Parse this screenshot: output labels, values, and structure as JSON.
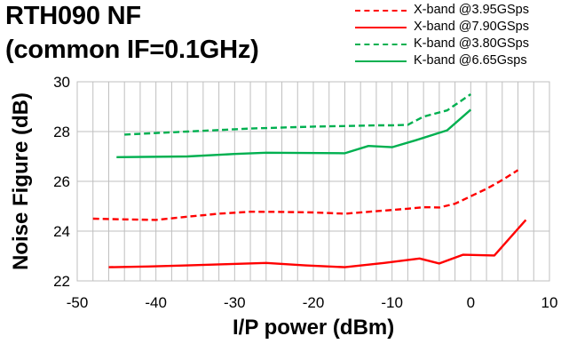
{
  "title": {
    "line1": "RTH090 NF",
    "line2": "(common IF=0.1GHz)"
  },
  "chart_data": {
    "type": "line",
    "xlabel": "I/P power (dBm)",
    "ylabel": "Noise Figure (dB)",
    "xlim": [
      -50,
      10
    ],
    "ylim": [
      22,
      30
    ],
    "xticks": [
      -50,
      -40,
      -30,
      -20,
      -10,
      0,
      10
    ],
    "yticks": [
      22,
      24,
      26,
      28,
      30
    ],
    "x_minor_gridlines_every": 2,
    "grid": true,
    "legend_position": "top-right",
    "series": [
      {
        "name": "X-band @3.95GSps",
        "color": "#ff0000",
        "dash": "dashed",
        "x": [
          -48,
          -44,
          -40,
          -36,
          -32,
          -28,
          -24,
          -20,
          -16,
          -12,
          -8,
          -6,
          -4,
          -2,
          0,
          2,
          4,
          6
        ],
        "y": [
          24.5,
          24.47,
          24.45,
          24.58,
          24.7,
          24.78,
          24.77,
          24.75,
          24.7,
          24.8,
          24.9,
          24.96,
          24.95,
          25.1,
          25.4,
          25.7,
          26.05,
          26.45
        ]
      },
      {
        "name": "X-band @7.90GSps",
        "color": "#ff0000",
        "dash": "solid",
        "x": [
          -46,
          -41,
          -36,
          -31,
          -26,
          -21,
          -16,
          -11,
          -6.5,
          -4,
          -1,
          3,
          7
        ],
        "y": [
          22.55,
          22.58,
          22.62,
          22.67,
          22.72,
          22.62,
          22.55,
          22.72,
          22.9,
          22.7,
          23.05,
          23.02,
          24.45
        ]
      },
      {
        "name": "K-band @3.80GSps",
        "color": "#00b050",
        "dash": "dashed",
        "x": [
          -44,
          -36,
          -28,
          -20,
          -16,
          -12,
          -10,
          -8,
          -6,
          -3,
          0
        ],
        "y": [
          27.88,
          28.0,
          28.12,
          28.2,
          28.22,
          28.25,
          28.25,
          28.27,
          28.6,
          28.85,
          29.5
        ]
      },
      {
        "name": "K-band @6.65Gsps",
        "color": "#00b050",
        "dash": "solid",
        "x": [
          -45,
          -36,
          -30,
          -26,
          -16,
          -13,
          -10,
          -7,
          -3,
          0
        ],
        "y": [
          26.97,
          27.0,
          27.1,
          27.15,
          27.13,
          27.42,
          27.37,
          27.65,
          28.05,
          28.88
        ]
      }
    ]
  }
}
